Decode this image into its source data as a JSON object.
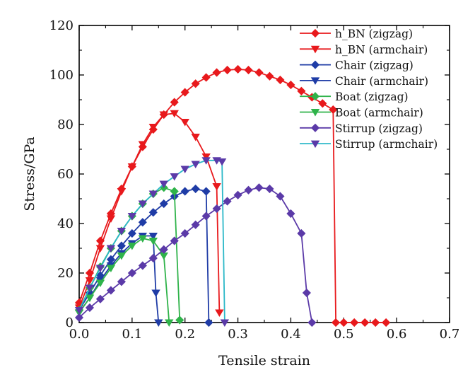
{
  "chart_data": {
    "type": "line",
    "xlabel": "Tensile strain",
    "ylabel": "Stress/GPa",
    "xlim": [
      0,
      0.7
    ],
    "ylim": [
      0,
      120
    ],
    "xticks": [
      0.0,
      0.1,
      0.2,
      0.3,
      0.4,
      0.5,
      0.6,
      0.7
    ],
    "xtick_labels": [
      "0.0",
      "0.1",
      "0.2",
      "0.3",
      "0.4",
      "0.5",
      "0.6",
      "0.7"
    ],
    "yticks": [
      0,
      20,
      40,
      60,
      80,
      100,
      120
    ],
    "ytick_labels": [
      "0",
      "20",
      "40",
      "60",
      "80",
      "100",
      "120"
    ],
    "grid": false,
    "legend_position": "top-right",
    "series": [
      {
        "name": "h_BN (zigzag)",
        "color": "#e8191c",
        "marker": "diamond",
        "x": [
          0.0,
          0.02,
          0.04,
          0.06,
          0.08,
          0.1,
          0.12,
          0.14,
          0.16,
          0.18,
          0.2,
          0.22,
          0.24,
          0.26,
          0.28,
          0.3,
          0.32,
          0.34,
          0.36,
          0.38,
          0.4,
          0.42,
          0.44,
          0.46,
          0.48,
          0.485,
          0.5,
          0.52,
          0.54,
          0.56,
          0.58
        ],
        "y": [
          8,
          20,
          33,
          44,
          54,
          63,
          71,
          78,
          84,
          89,
          93,
          96.5,
          99,
          101,
          102,
          102.3,
          102,
          101,
          99.5,
          98,
          96,
          93.5,
          91,
          88.5,
          86,
          0,
          0,
          0,
          0,
          0,
          0
        ]
      },
      {
        "name": "h_BN (armchair)",
        "color": "#e8191c",
        "marker": "triangle-down",
        "x": [
          0.0,
          0.02,
          0.04,
          0.06,
          0.08,
          0.1,
          0.12,
          0.14,
          0.16,
          0.18,
          0.2,
          0.22,
          0.24,
          0.26,
          0.265
        ],
        "y": [
          6,
          17,
          30,
          42,
          53,
          63,
          72,
          79,
          84,
          84.5,
          81,
          75,
          67,
          55,
          4
        ]
      },
      {
        "name": "Chair (zigzag)",
        "color": "#1f3ca6",
        "marker": "diamond",
        "x": [
          0.0,
          0.02,
          0.04,
          0.06,
          0.08,
          0.1,
          0.12,
          0.14,
          0.16,
          0.18,
          0.2,
          0.22,
          0.24,
          0.245
        ],
        "y": [
          5,
          12,
          19,
          25.5,
          31,
          36,
          40.5,
          44.5,
          48,
          51,
          53,
          54,
          53,
          0
        ]
      },
      {
        "name": "Chair (armchair)",
        "color": "#1f3ca6",
        "marker": "triangle-down",
        "x": [
          0.0,
          0.02,
          0.04,
          0.06,
          0.08,
          0.1,
          0.12,
          0.14,
          0.145,
          0.15
        ],
        "y": [
          4,
          10,
          17,
          23,
          28,
          32,
          35,
          35,
          12,
          0
        ]
      },
      {
        "name": "Boat (zigzag)",
        "color": "#2fb34a",
        "marker": "diamond",
        "x": [
          0.0,
          0.02,
          0.04,
          0.06,
          0.08,
          0.1,
          0.12,
          0.14,
          0.16,
          0.18,
          0.19
        ],
        "y": [
          5,
          14,
          22.5,
          30,
          37,
          43,
          48,
          52,
          54.5,
          53,
          1
        ]
      },
      {
        "name": "Boat (armchair)",
        "color": "#2fb34a",
        "marker": "triangle-down",
        "x": [
          0.0,
          0.02,
          0.04,
          0.06,
          0.08,
          0.1,
          0.12,
          0.14,
          0.16,
          0.17
        ],
        "y": [
          4,
          10,
          16,
          22,
          27,
          31,
          34,
          33,
          27,
          0
        ]
      },
      {
        "name": "Stirrup (zigzag)",
        "color": "#5b3aa8",
        "marker": "diamond",
        "x": [
          0.0,
          0.02,
          0.04,
          0.06,
          0.08,
          0.1,
          0.12,
          0.14,
          0.16,
          0.18,
          0.2,
          0.22,
          0.24,
          0.26,
          0.28,
          0.3,
          0.32,
          0.34,
          0.36,
          0.38,
          0.4,
          0.42,
          0.43,
          0.44
        ],
        "y": [
          2,
          6,
          9.5,
          13,
          16.5,
          20,
          23,
          26,
          29.5,
          33,
          36,
          39.5,
          43,
          46,
          49,
          51.5,
          53.5,
          54.5,
          54,
          51,
          44,
          36,
          12,
          0
        ]
      },
      {
        "name": "Stirrup (armchair)",
        "color": "#5b3aa8",
        "marker": "triangle-down",
        "line_color": "#2bb8c8",
        "x": [
          0.0,
          0.02,
          0.04,
          0.06,
          0.08,
          0.1,
          0.12,
          0.14,
          0.16,
          0.18,
          0.2,
          0.22,
          0.24,
          0.26,
          0.27,
          0.275
        ],
        "y": [
          5,
          14,
          22,
          30,
          37,
          43,
          48,
          52,
          56,
          59,
          62,
          64,
          65.5,
          65.5,
          65,
          0
        ]
      }
    ]
  }
}
